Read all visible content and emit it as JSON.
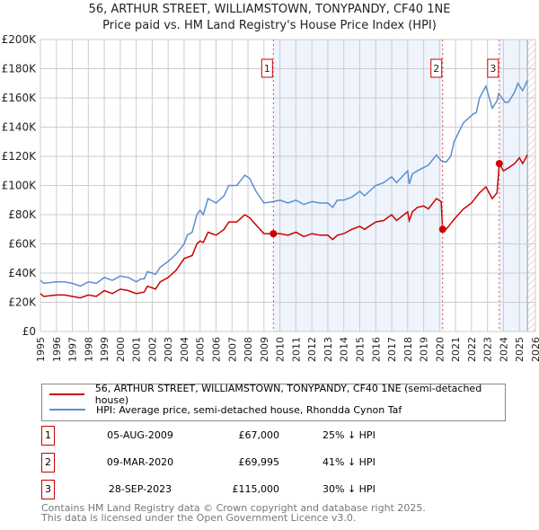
{
  "chart_data": {
    "type": "line",
    "title": "56, ARTHUR STREET, WILLIAMSTOWN, TONYPANDY, CF40 1NE",
    "subtitle": "Price paid vs. HM Land Registry's House Price Index (HPI)",
    "xlim": [
      1995,
      2026
    ],
    "ylim": [
      0,
      200000
    ],
    "x_ticks": [
      1995,
      1996,
      1997,
      1998,
      1999,
      2000,
      2001,
      2002,
      2003,
      2004,
      2005,
      2006,
      2007,
      2008,
      2009,
      2010,
      2011,
      2012,
      2013,
      2014,
      2015,
      2016,
      2017,
      2018,
      2019,
      2020,
      2021,
      2022,
      2023,
      2024,
      2025,
      2026
    ],
    "y_ticks": [
      {
        "v": 0,
        "label": "£0"
      },
      {
        "v": 20000,
        "label": "£20K"
      },
      {
        "v": 40000,
        "label": "£40K"
      },
      {
        "v": 60000,
        "label": "£60K"
      },
      {
        "v": 80000,
        "label": "£80K"
      },
      {
        "v": 100000,
        "label": "£100K"
      },
      {
        "v": 120000,
        "label": "£120K"
      },
      {
        "v": 140000,
        "label": "£140K"
      },
      {
        "v": 160000,
        "label": "£160K"
      },
      {
        "v": 180000,
        "label": "£180K"
      },
      {
        "v": 200000,
        "label": "£200K"
      }
    ],
    "grid": true,
    "forecast_from": 2025.5,
    "series": [
      {
        "name": "56, ARTHUR STREET, WILLIAMSTOWN, TONYPANDY, CF40 1NE (semi-detached house)",
        "color": "#cc0000",
        "x": [
          1995,
          1995.2,
          1996,
          1996.5,
          1997,
          1997.5,
          1998,
          1998.5,
          1999,
          1999.5,
          2000,
          2000.5,
          2001,
          2001.5,
          2001.7,
          2002,
          2002.2,
          2002.5,
          2003,
          2003.5,
          2004,
          2004.5,
          2004.8,
          2005,
          2005.2,
          2005.5,
          2006,
          2006.5,
          2006.8,
          2007.3,
          2007.8,
          2008.1,
          2008.5,
          2009,
          2009.59,
          2010,
          2010.5,
          2011,
          2011.5,
          2012,
          2012.5,
          2013,
          2013.3,
          2013.6,
          2014,
          2014.5,
          2015,
          2015.3,
          2016,
          2016.5,
          2017,
          2017.3,
          2018,
          2018.1,
          2018.3,
          2018.6,
          2019,
          2019.3,
          2019.8,
          2020.1,
          2020.19,
          2020.4,
          2020.7,
          2021,
          2021.5,
          2022,
          2022.5,
          2022.9,
          2023.3,
          2023.6,
          2023.74,
          2024,
          2024.3,
          2024.7,
          2025,
          2025.2,
          2025.5
        ],
        "y": [
          26,
          24,
          25,
          25,
          24,
          23,
          25,
          24,
          28,
          26,
          29,
          28,
          26,
          27,
          31,
          30,
          29,
          34,
          37,
          42,
          50,
          52,
          60,
          62,
          61,
          68,
          66,
          70,
          75,
          75,
          80,
          78,
          73,
          67,
          67,
          67,
          66,
          68,
          65,
          67,
          66,
          66,
          63,
          66,
          67,
          70,
          72,
          70,
          75,
          76,
          80,
          76,
          82,
          76,
          82,
          85,
          86,
          84,
          91,
          89,
          70,
          70,
          74,
          78,
          84,
          88,
          95,
          99,
          91,
          95,
          115,
          110,
          112,
          115,
          119,
          115,
          121
        ]
      },
      {
        "name": "HPI: Average price, semi-detached house, Rhondda Cynon Taf",
        "color": "#5b8fd0",
        "x": [
          1995,
          1995.2,
          1996,
          1996.5,
          1997,
          1997.5,
          1998,
          1998.5,
          1999,
          1999.5,
          2000,
          2000.5,
          2001,
          2001.3,
          2001.5,
          2001.7,
          2002,
          2002.2,
          2002.5,
          2003,
          2003.5,
          2004,
          2004.2,
          2004.5,
          2004.8,
          2005,
          2005.2,
          2005.5,
          2006,
          2006.5,
          2006.8,
          2007.3,
          2007.8,
          2008.1,
          2008.5,
          2009,
          2009.6,
          2010,
          2010.5,
          2011,
          2011.5,
          2012,
          2012.5,
          2013,
          2013.3,
          2013.6,
          2014,
          2014.5,
          2015,
          2015.3,
          2016,
          2016.5,
          2017,
          2017.3,
          2018,
          2018.1,
          2018.3,
          2018.6,
          2019.3,
          2019.8,
          2020.1,
          2020.4,
          2020.7,
          2020.9,
          2021.5,
          2022.1,
          2022.3,
          2022.5,
          2022.9,
          2023.3,
          2023.6,
          2023.7,
          2024.1,
          2024.3,
          2024.7,
          2024.9,
          2025.2,
          2025.5
        ],
        "y": [
          35,
          33,
          34,
          34,
          33,
          31,
          34,
          33,
          37,
          35,
          38,
          37,
          34,
          36,
          36,
          41,
          40,
          39,
          44,
          48,
          53,
          60,
          66,
          68,
          80,
          83,
          80,
          91,
          88,
          93,
          100,
          100,
          107,
          105,
          96,
          88,
          89,
          90,
          88,
          90,
          87,
          89,
          88,
          88,
          85,
          90,
          90,
          92,
          96,
          93,
          100,
          102,
          106,
          102,
          110,
          101,
          108,
          110,
          114,
          121,
          117,
          116,
          120,
          130,
          143,
          149,
          150,
          160,
          168,
          153,
          158,
          163,
          157,
          157,
          164,
          170,
          165,
          172
        ]
      }
    ],
    "y_units": "thousands GBP",
    "sales": [
      {
        "n": "1",
        "x": 2009.59,
        "date": "05-AUG-2009",
        "price": 67000,
        "price_label": "£67,000",
        "pct": "25% ↓ HPI"
      },
      {
        "n": "2",
        "x": 2020.19,
        "date": "09-MAR-2020",
        "price": 69995,
        "price_label": "£69,995",
        "pct": "41% ↓ HPI"
      },
      {
        "n": "3",
        "x": 2023.74,
        "date": "28-SEP-2023",
        "price": 115000,
        "price_label": "£115,000",
        "pct": "30% ↓ HPI"
      }
    ]
  },
  "footer": [
    "Contains HM Land Registry data © Crown copyright and database right 2025.",
    "This data is licensed under the Open Government Licence v3.0."
  ],
  "colors": {
    "price": "#cc0000",
    "hpi": "#5b8fd0",
    "shade": "#eef3fc"
  }
}
